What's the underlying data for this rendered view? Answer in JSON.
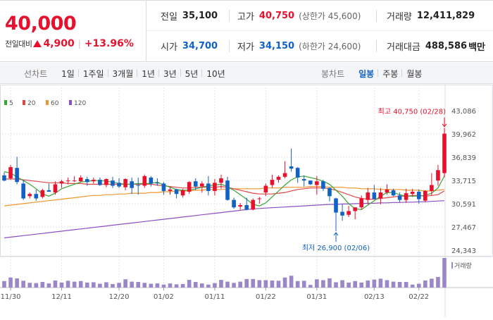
{
  "header": {
    "price": "40,000",
    "change_label": "전일대비",
    "change_value": "4,900",
    "change_sep": "|",
    "change_pct": "+13.96%",
    "stats": {
      "prev_close": {
        "label": "전일",
        "value": "35,100"
      },
      "high": {
        "label": "고가",
        "value": "40,750",
        "sub": "(상한가 45,600)"
      },
      "volume": {
        "label": "거래량",
        "value": "12,411,829"
      },
      "open": {
        "label": "시가",
        "value": "34,700"
      },
      "low": {
        "label": "저가",
        "value": "34,150",
        "sub": "(하한가 24,600)"
      },
      "amount": {
        "label": "거래대금",
        "value": "488,586",
        "unit": "백만"
      }
    }
  },
  "tabs": {
    "line_title": "선차트",
    "line_items": [
      "1일",
      "1주일",
      "3개월",
      "1년",
      "3년",
      "5년",
      "10년"
    ],
    "candle_title": "봉차트",
    "candle_items": [
      "일봉",
      "주봉",
      "월봉"
    ],
    "candle_active": 0
  },
  "colors": {
    "up": "#e8112d",
    "down": "#1261c4",
    "ma5": "#3aa535",
    "ma20": "#e04848",
    "ma60": "#f0962d",
    "ma120": "#8b4fc1",
    "volume": "#9b86c7",
    "grid": "#e6e6e6"
  },
  "chart_data": {
    "type": "candlestick",
    "legend": [
      {
        "label": "5",
        "color": "#3aa535"
      },
      {
        "label": "20",
        "color": "#e04848"
      },
      {
        "label": "60",
        "color": "#f0962d"
      },
      {
        "label": "120",
        "color": "#8b4fc1"
      }
    ],
    "y_ticks": [
      "43,086",
      "39,962",
      "36,839",
      "33,715",
      "30,591",
      "27,467",
      "24,343"
    ],
    "y_tick_values": [
      43086,
      39962,
      36839,
      33715,
      30591,
      27467,
      24343
    ],
    "ylim": [
      24343,
      43086
    ],
    "x_labels": [
      "11/30",
      "12/11",
      "12/20",
      "01/02",
      "01/11",
      "01/22",
      "01/31",
      "02/13",
      "02/22"
    ],
    "x_label_index": [
      1,
      9,
      18,
      25,
      33,
      41,
      49,
      58,
      65
    ],
    "volume_label": "거래량",
    "annotations": {
      "high": {
        "text": "최고 40,750 (02/28)",
        "index": 69,
        "price": 40750
      },
      "low": {
        "text": "최저 26,900 (02/06)",
        "index": 52,
        "price": 26900
      }
    },
    "candles": [
      [
        34400,
        34800,
        33600,
        33700
      ],
      [
        34000,
        35800,
        33800,
        35500
      ],
      [
        35400,
        36900,
        33200,
        33500
      ],
      [
        33300,
        33800,
        31100,
        31300
      ],
      [
        31600,
        32100,
        31300,
        31900
      ],
      [
        31900,
        32500,
        31000,
        31300
      ],
      [
        31500,
        32600,
        31300,
        32400
      ],
      [
        32400,
        33300,
        32200,
        32200
      ],
      [
        32100,
        33600,
        31800,
        33200
      ],
      [
        33300,
        33800,
        32700,
        33600
      ],
      [
        33700,
        34100,
        33200,
        33700
      ],
      [
        33700,
        34300,
        33500,
        33700
      ],
      [
        33600,
        34400,
        33500,
        34100
      ],
      [
        33900,
        34200,
        33000,
        33500
      ],
      [
        33600,
        34100,
        33300,
        33800
      ],
      [
        33800,
        34100,
        33000,
        33100
      ],
      [
        33100,
        34000,
        32800,
        33900
      ],
      [
        33700,
        34200,
        32700,
        33000
      ],
      [
        33400,
        34000,
        32700,
        32900
      ],
      [
        32800,
        34000,
        32400,
        33900
      ],
      [
        33600,
        34100,
        31900,
        32700
      ],
      [
        33100,
        34100,
        31800,
        33000
      ],
      [
        33000,
        34500,
        32700,
        34300
      ],
      [
        34100,
        34300,
        32900,
        33300
      ],
      [
        33400,
        34000,
        33000,
        33300
      ],
      [
        33300,
        33500,
        31800,
        32300
      ],
      [
        32300,
        32800,
        31800,
        32500
      ],
      [
        32500,
        32600,
        31300,
        31900
      ],
      [
        31700,
        32600,
        31400,
        32400
      ],
      [
        32200,
        33600,
        31900,
        33500
      ],
      [
        33600,
        34000,
        32400,
        32900
      ],
      [
        32900,
        33600,
        32100,
        33300
      ],
      [
        33300,
        34300,
        31700,
        32300
      ],
      [
        32300,
        33900,
        31700,
        33400
      ],
      [
        33400,
        34500,
        32600,
        34000
      ],
      [
        33700,
        34200,
        31000,
        31100
      ],
      [
        31100,
        31400,
        29900,
        30100
      ],
      [
        30200,
        30700,
        29800,
        30400
      ],
      [
        30400,
        31400,
        29700,
        29800
      ],
      [
        29800,
        31300,
        29700,
        31100
      ],
      [
        31300,
        31500,
        30600,
        31300
      ],
      [
        32100,
        33300,
        31600,
        33000
      ],
      [
        33100,
        34500,
        32700,
        33800
      ],
      [
        33800,
        34400,
        33400,
        34200
      ],
      [
        34200,
        36300,
        34000,
        34700
      ],
      [
        35600,
        38000,
        34900,
        35300
      ],
      [
        35400,
        35500,
        33400,
        34100
      ],
      [
        33900,
        34400,
        32900,
        33700
      ],
      [
        33700,
        33700,
        33100,
        33200
      ],
      [
        33100,
        34300,
        31800,
        33600
      ],
      [
        33600,
        33800,
        32300,
        32600
      ],
      [
        32700,
        32800,
        30900,
        31600
      ],
      [
        31300,
        31400,
        26900,
        29400
      ],
      [
        29500,
        30500,
        28300,
        29000
      ],
      [
        29100,
        30300,
        28800,
        29600
      ],
      [
        29600,
        30000,
        28500,
        30100
      ],
      [
        30100,
        31700,
        29800,
        31300
      ],
      [
        31100,
        32700,
        30500,
        32100
      ],
      [
        32100,
        33100,
        31200,
        31200
      ],
      [
        31300,
        32700,
        30500,
        32100
      ],
      [
        32100,
        33200,
        31800,
        32500
      ],
      [
        32400,
        32600,
        31600,
        31700
      ],
      [
        31700,
        32100,
        30800,
        31100
      ],
      [
        31100,
        32600,
        30700,
        32000
      ],
      [
        31900,
        32600,
        31500,
        32200
      ],
      [
        32200,
        32500,
        30600,
        31200
      ],
      [
        31000,
        32400,
        30800,
        32300
      ],
      [
        32300,
        34700,
        31700,
        33100
      ],
      [
        33700,
        35800,
        33000,
        35100
      ],
      [
        34700,
        40750,
        34150,
        40000
      ]
    ],
    "volume": [
      0.22,
      0.34,
      0.31,
      0.23,
      0.16,
      0.15,
      0.19,
      0.14,
      0.24,
      0.17,
      0.23,
      0.2,
      0.22,
      0.17,
      0.18,
      0.13,
      0.18,
      0.12,
      0.16,
      0.28,
      0.2,
      0.19,
      0.16,
      0.13,
      0.14,
      0.1,
      0.14,
      0.11,
      0.12,
      0.26,
      0.19,
      0.14,
      0.1,
      0.15,
      0.26,
      0.2,
      0.16,
      0.2,
      0.29,
      0.29,
      0.25,
      0.25,
      0.24,
      0.23,
      0.34,
      0.4,
      0.22,
      0.23,
      0.09,
      0.28,
      0.25,
      0.31,
      0.18,
      0.25,
      0.17,
      0.22,
      0.17,
      0.24,
      0.27,
      0.3,
      0.25,
      0.2,
      0.19,
      0.19,
      0.1,
      0.13,
      0.24,
      0.3,
      0.36,
      1.0
    ],
    "ma5": [
      34900,
      34700,
      34200,
      33700,
      33200,
      32600,
      31900,
      31600,
      32000,
      32600,
      32900,
      33200,
      33500,
      33600,
      33700,
      33700,
      33600,
      33500,
      33300,
      33200,
      33200,
      33300,
      33300,
      33300,
      33500,
      33100,
      32800,
      32500,
      32400,
      32400,
      32600,
      32800,
      33000,
      33100,
      33200,
      32900,
      32400,
      31800,
      31200,
      30500,
      30300,
      30700,
      31500,
      32300,
      33100,
      33800,
      34200,
      34300,
      34100,
      33900,
      33600,
      33200,
      32400,
      31600,
      30600,
      29900,
      29800,
      30400,
      31000,
      31600,
      32100,
      32100,
      31800,
      31600,
      31600,
      31600,
      31700,
      32000,
      32700,
      34300
    ],
    "ma20": [
      33900,
      33900,
      33900,
      33800,
      33700,
      33600,
      33500,
      33400,
      33400,
      33400,
      33300,
      33300,
      33300,
      33200,
      33200,
      33200,
      33200,
      33200,
      33200,
      33200,
      33200,
      33200,
      33200,
      33200,
      33100,
      33000,
      32900,
      32800,
      32700,
      32700,
      32800,
      32800,
      32800,
      32800,
      32900,
      32800,
      32600,
      32400,
      32200,
      32000,
      31900,
      31900,
      31900,
      32000,
      32100,
      32300,
      32500,
      32600,
      32700,
      32700,
      32700,
      32600,
      32400,
      32100,
      31800,
      31500,
      31300,
      31200,
      31200,
      31300,
      31400,
      31500,
      31600,
      31600,
      31700,
      31700,
      31600,
      31700,
      31800,
      32300
    ],
    "ma60": [
      30300,
      30400,
      30500,
      30600,
      30700,
      30800,
      30900,
      31000,
      31100,
      31200,
      31300,
      31400,
      31500,
      31600,
      31700,
      31700,
      31800,
      31800,
      31900,
      31900,
      32000,
      32000,
      32000,
      32100,
      32100,
      32200,
      32200,
      32300,
      32300,
      32300,
      32400,
      32400,
      32500,
      32500,
      32500,
      32600,
      32600,
      32600,
      32600,
      32600,
      32600,
      32700,
      32700,
      32700,
      32800,
      32800,
      32800,
      32800,
      32900,
      32900,
      32900,
      32800,
      32800,
      32800,
      32700,
      32700,
      32600,
      32600,
      32600,
      32500,
      32500,
      32500,
      32500,
      32400,
      32400,
      32400,
      32300,
      32300,
      32400,
      32500
    ],
    "ma120": [
      26000,
      26100,
      26200,
      26300,
      26400,
      26500,
      26600,
      26700,
      26800,
      26900,
      27000,
      27100,
      27200,
      27300,
      27400,
      27500,
      27600,
      27700,
      27800,
      27900,
      28000,
      28100,
      28200,
      28300,
      28400,
      28500,
      28600,
      28700,
      28800,
      28900,
      29000,
      29100,
      29200,
      29300,
      29400,
      29500,
      29600,
      29700,
      29800,
      29900,
      29950,
      30000,
      30050,
      30100,
      30150,
      30200,
      30250,
      30300,
      30350,
      30400,
      30450,
      30500,
      30500,
      30550,
      30550,
      30600,
      30600,
      30650,
      30650,
      30700,
      30700,
      30750,
      30750,
      30800,
      30800,
      30850,
      30850,
      30900,
      30950,
      31000
    ]
  }
}
